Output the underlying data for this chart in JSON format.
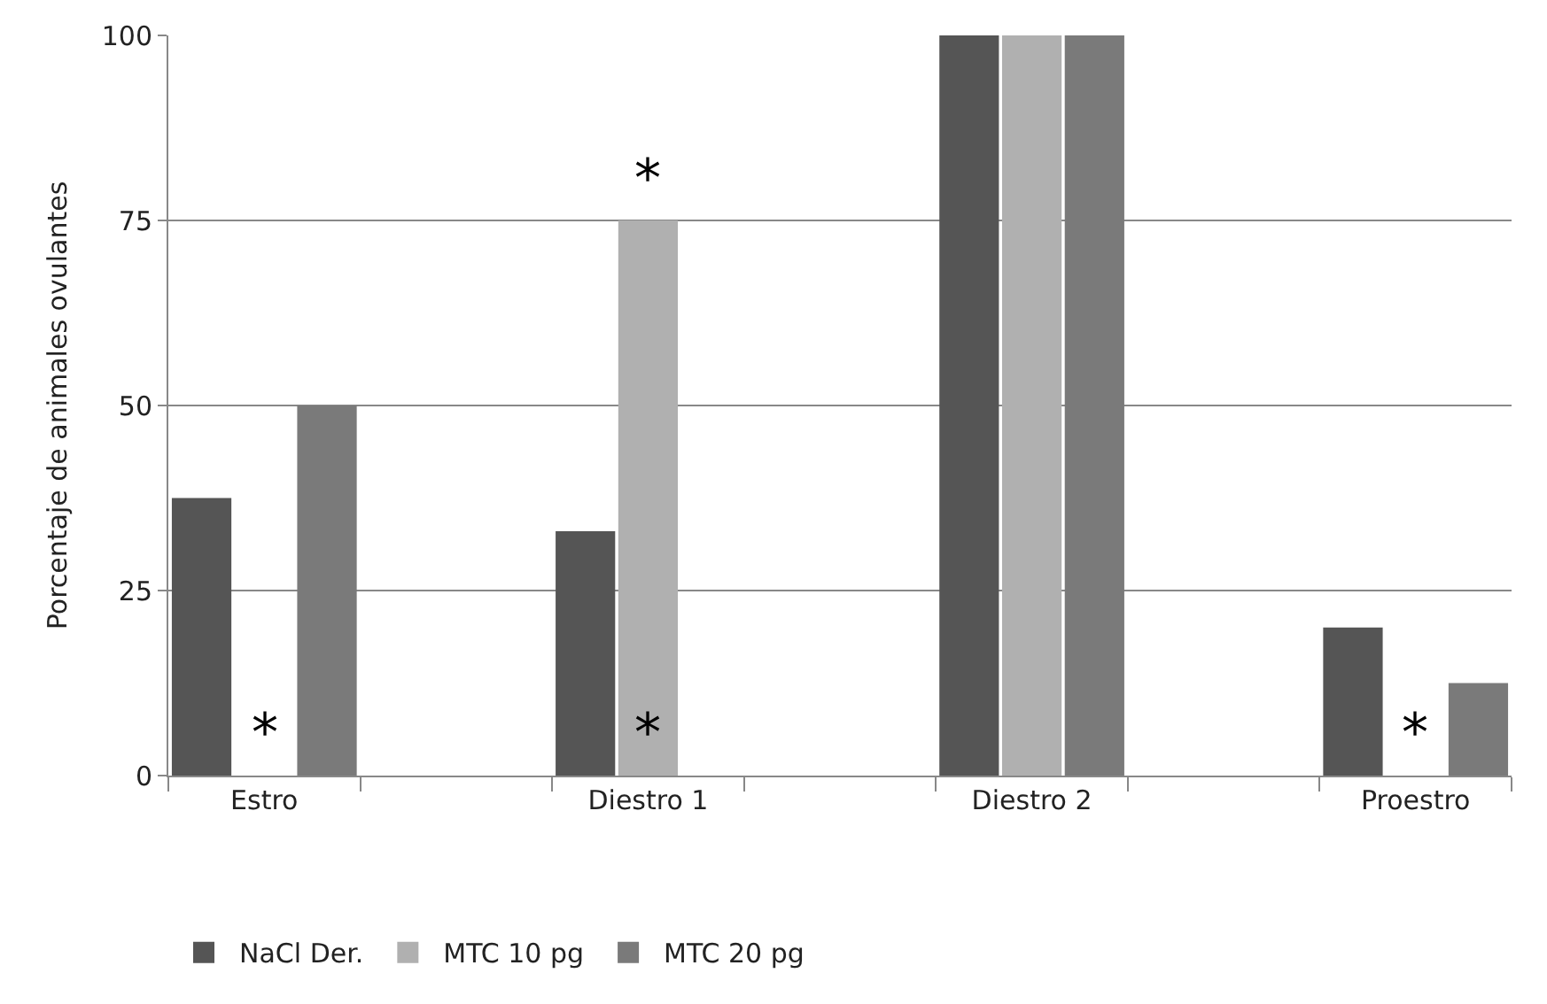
{
  "chart_data": {
    "type": "bar",
    "ylabel": "Porcentaje de animales ovulantes",
    "categories": [
      "Estro",
      null,
      "Diestro 1",
      null,
      "Diestro 2",
      null,
      "Proestro"
    ],
    "series": [
      {
        "name": "NaCl Der.",
        "color": "#555555",
        "values": [
          37.5,
          null,
          33,
          null,
          100,
          null,
          20
        ]
      },
      {
        "name": "MTC 10 pg",
        "color": "#b0b0b0",
        "values": [
          0,
          null,
          75,
          null,
          100,
          null,
          0
        ]
      },
      {
        "name": "MTC 20 pg",
        "color": "#7a7a7a",
        "values": [
          50,
          null,
          0,
          null,
          100,
          null,
          12.5
        ]
      }
    ],
    "ylim": [
      0,
      100
    ],
    "yticks": [
      0,
      25,
      50,
      75,
      100
    ],
    "grid": "y",
    "legend": "bottom",
    "annotations": [
      {
        "text": "*",
        "x": "Estro",
        "y": 0
      },
      {
        "text": "*",
        "x": "Diestro 1",
        "y": 75
      },
      {
        "text": "*",
        "x": "Diestro 1",
        "y": 0
      },
      {
        "text": "*",
        "x": "Proestro",
        "y": 0
      }
    ]
  }
}
